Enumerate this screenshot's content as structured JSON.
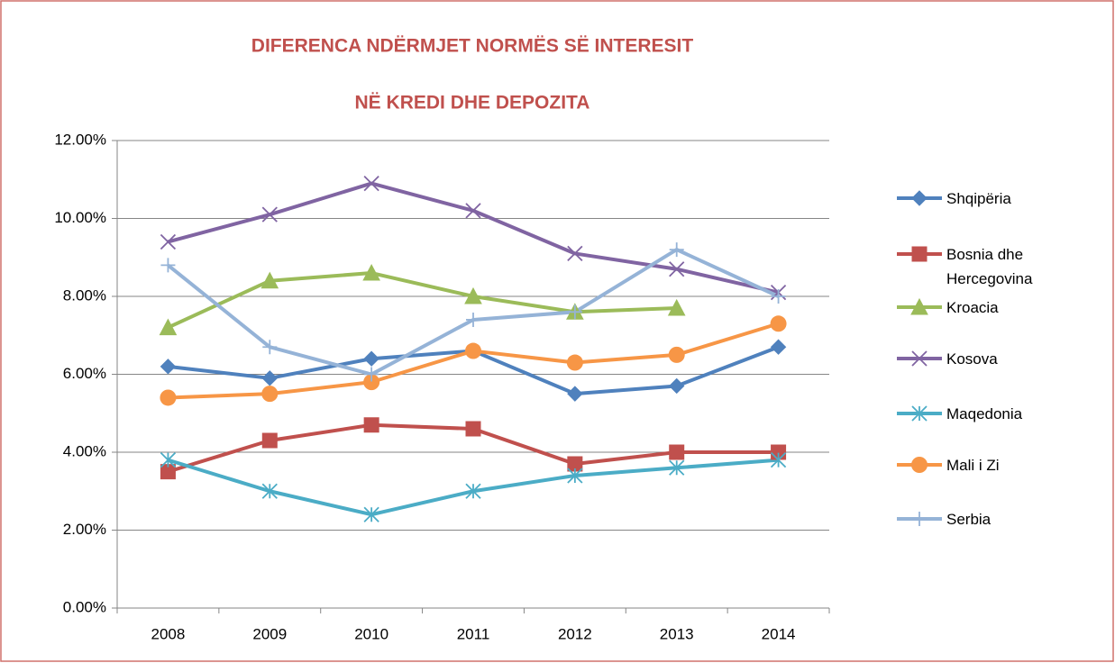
{
  "chart_data": {
    "type": "line",
    "title": [
      "DIFERENCA NDËRMJET NORMËS SË INTERESIT",
      "NË KREDI DHE DEPOZITA"
    ],
    "categories": [
      "2008",
      "2009",
      "2010",
      "2011",
      "2012",
      "2013",
      "2014"
    ],
    "series": [
      {
        "name": "Shqipëria",
        "color": "#4f81bd",
        "marker": "diamond",
        "values": [
          6.2,
          5.9,
          6.4,
          6.6,
          5.5,
          5.7,
          6.7
        ]
      },
      {
        "name": "Bosnia dhe Hercegovina",
        "color": "#c0504d",
        "marker": "square",
        "values": [
          3.5,
          4.3,
          4.7,
          4.6,
          3.7,
          4.0,
          4.0
        ]
      },
      {
        "name": "Kroacia",
        "color": "#9bbb59",
        "marker": "triangle",
        "values": [
          7.2,
          8.4,
          8.6,
          8.0,
          7.6,
          7.7,
          null
        ]
      },
      {
        "name": "Kosova",
        "color": "#8064a2",
        "marker": "x",
        "values": [
          9.4,
          10.1,
          10.9,
          10.2,
          9.1,
          8.7,
          8.1
        ]
      },
      {
        "name": "Maqedonia",
        "color": "#4bacc6",
        "marker": "star",
        "values": [
          3.8,
          3.0,
          2.4,
          3.0,
          3.4,
          3.6,
          3.8
        ]
      },
      {
        "name": "Mali i Zi",
        "color": "#f79646",
        "marker": "circle",
        "values": [
          5.4,
          5.5,
          5.8,
          6.6,
          6.3,
          6.5,
          7.3
        ]
      },
      {
        "name": "Serbia",
        "color": "#95b3d7",
        "marker": "plus",
        "values": [
          8.8,
          6.7,
          6.0,
          7.4,
          7.6,
          9.2,
          8.0
        ]
      }
    ],
    "ylim": [
      0,
      12
    ],
    "yticks": [
      {
        "value": 0,
        "label": "0.00%"
      },
      {
        "value": 2,
        "label": "2.00%"
      },
      {
        "value": 4,
        "label": "4.00%"
      },
      {
        "value": 6,
        "label": "6.00%"
      },
      {
        "value": 8,
        "label": "8.00%"
      },
      {
        "value": 10,
        "label": "10.00%"
      },
      {
        "value": 12,
        "label": "12.00%"
      }
    ],
    "grid": true,
    "legend": "right"
  }
}
